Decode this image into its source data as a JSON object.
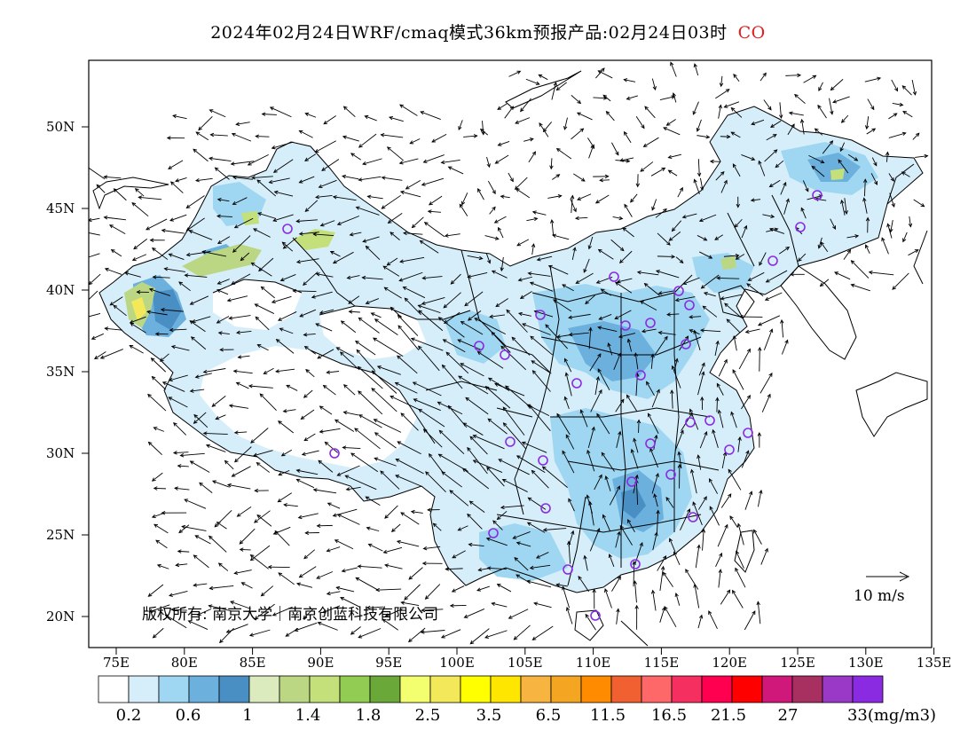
{
  "title": {
    "main": "2024年02月24日WRF/cmaq模式36km预报产品:02月24日03时",
    "species": "CO"
  },
  "axes": {
    "lat_ticks": [
      "50N",
      "45N",
      "40N",
      "35N",
      "30N",
      "25N",
      "20N"
    ],
    "lon_ticks": [
      "75E",
      "80E",
      "85E",
      "90E",
      "95E",
      "100E",
      "105E",
      "110E",
      "115E",
      "120E",
      "125E",
      "130E",
      "135E"
    ]
  },
  "wind_reference": {
    "label": "10 m/s"
  },
  "copyright": "版权所有: 南京大学｜南京创蓝科技有限公司",
  "colorbar": {
    "colors": [
      "#ffffff",
      "#d6eefa",
      "#9fd7f2",
      "#6cb1de",
      "#4a8fc4",
      "#dcebbd",
      "#bcd784",
      "#c3e07a",
      "#93cc52",
      "#6aa83a",
      "#f3ff6e",
      "#f2e85a",
      "#ffff00",
      "#ffe600",
      "#f8b440",
      "#f4a623",
      "#ff8c00",
      "#f06030",
      "#ff6868",
      "#f53060",
      "#ff0050",
      "#ff0000",
      "#d0187a",
      "#a83060",
      "#9a38c8",
      "#8a2be2"
    ],
    "labels": [
      "0.2",
      "0.6",
      "1",
      "1.4",
      "1.8",
      "2.5",
      "3.5",
      "6.5",
      "11.5",
      "16.5",
      "21.5",
      "27",
      "33(mg/m3)"
    ]
  },
  "stations": [
    "station-urumqi",
    "station-beijing",
    "station-tianjin",
    "station-shijiazhuang",
    "station-taiyuan",
    "station-hohhot",
    "station-shenyang",
    "station-changchun",
    "station-harbin",
    "station-jinan",
    "station-zhengzhou",
    "station-xian",
    "station-lanzhou",
    "station-xining",
    "station-yinchuan",
    "station-nanjing",
    "station-shanghai",
    "station-hefei",
    "station-hangzhou",
    "station-wuhan",
    "station-changsha",
    "station-nanchang",
    "station-fuzhou",
    "station-guangzhou",
    "station-nanning",
    "station-haikou",
    "station-chengdu",
    "station-chongqing",
    "station-guiyang",
    "station-kunming",
    "station-lhasa"
  ]
}
